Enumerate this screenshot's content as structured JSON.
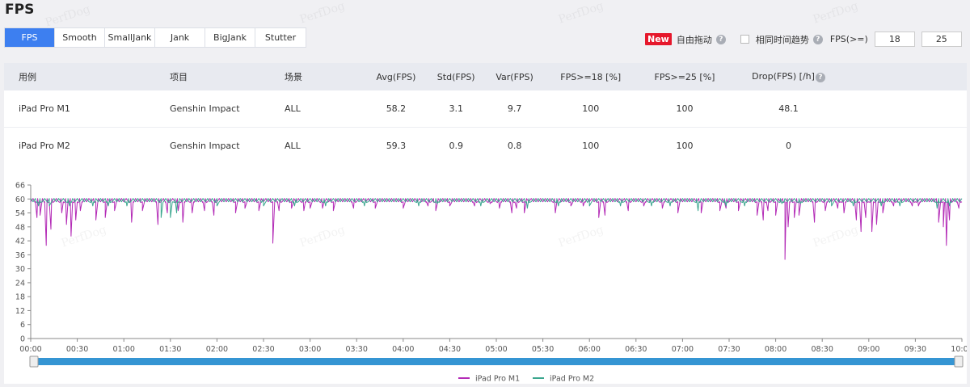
{
  "page": {
    "title": "FPS",
    "watermark": "PerfDog"
  },
  "tabs": [
    {
      "label": "FPS",
      "active": true
    },
    {
      "label": "Smooth",
      "active": false
    },
    {
      "label": "SmallJank",
      "active": false
    },
    {
      "label": "Jank",
      "active": false
    },
    {
      "label": "BigJank",
      "active": false
    },
    {
      "label": "Stutter",
      "active": false
    }
  ],
  "toolbar": {
    "new_badge": "New",
    "free_drag_label": "自由拖动",
    "same_time_trend_label": "相同时间趋势",
    "same_time_trend_checked": false,
    "fps_ge_label": "FPS(>=)",
    "fps_threshold_1": "18",
    "fps_threshold_2": "25"
  },
  "table": {
    "headers": [
      "用例",
      "项目",
      "场景",
      "Avg(FPS)",
      "Std(FPS)",
      "Var(FPS)",
      "FPS>=18 [%]",
      "FPS>=25 [%]",
      "Drop(FPS) [/h]"
    ],
    "rows": [
      [
        "iPad Pro M1",
        "Genshin Impact",
        "ALL",
        "58.2",
        "3.1",
        "9.7",
        "100",
        "100",
        "48.1"
      ],
      [
        "iPad Pro M2",
        "Genshin Impact",
        "ALL",
        "59.3",
        "0.9",
        "0.8",
        "100",
        "100",
        "0"
      ]
    ]
  },
  "colors": {
    "accent": "#3d7ff0",
    "badge": "#e6182c",
    "m1": "#b32ab6",
    "m2": "#3aa68e",
    "slider": "#3595d3"
  },
  "chart_data": {
    "type": "line",
    "title": "",
    "xlabel": "",
    "ylabel": "",
    "ylim": [
      0,
      66
    ],
    "yticks": [
      0,
      6,
      12,
      18,
      24,
      30,
      36,
      42,
      48,
      54,
      60,
      66
    ],
    "xlim": [
      0,
      600
    ],
    "xtick_labels": [
      "00:00",
      "00:30",
      "01:00",
      "01:30",
      "02:00",
      "02:30",
      "03:00",
      "03:30",
      "04:00",
      "04:30",
      "05:00",
      "05:30",
      "06:00",
      "06:30",
      "07:00",
      "07:30",
      "08:00",
      "08:30",
      "09:00",
      "09:30",
      "10:00"
    ],
    "baseline": 59.5,
    "series": [
      {
        "name": "iPad Pro M1",
        "color": "#b32ab6",
        "drops": [
          [
            4,
            52
          ],
          [
            6,
            53
          ],
          [
            10,
            40
          ],
          [
            13,
            47
          ],
          [
            20,
            54
          ],
          [
            23,
            49
          ],
          [
            26,
            44
          ],
          [
            29,
            51
          ],
          [
            32,
            55
          ],
          [
            42,
            51
          ],
          [
            48,
            52
          ],
          [
            54,
            55
          ],
          [
            65,
            50
          ],
          [
            72,
            55
          ],
          [
            82,
            49
          ],
          [
            88,
            54
          ],
          [
            95,
            55
          ],
          [
            98,
            50
          ],
          [
            104,
            54
          ],
          [
            112,
            55
          ],
          [
            118,
            53
          ],
          [
            132,
            54
          ],
          [
            138,
            56
          ],
          [
            147,
            55
          ],
          [
            156,
            41
          ],
          [
            160,
            55
          ],
          [
            168,
            56
          ],
          [
            176,
            55
          ],
          [
            180,
            56
          ],
          [
            188,
            56
          ],
          [
            195,
            55
          ],
          [
            208,
            56
          ],
          [
            222,
            56
          ],
          [
            240,
            56
          ],
          [
            256,
            57
          ],
          [
            261,
            55
          ],
          [
            270,
            57
          ],
          [
            286,
            57
          ],
          [
            296,
            58
          ],
          [
            302,
            56
          ],
          [
            310,
            54
          ],
          [
            313,
            56
          ],
          [
            318,
            54
          ],
          [
            338,
            54
          ],
          [
            348,
            57
          ],
          [
            356,
            57
          ],
          [
            366,
            52
          ],
          [
            370,
            53
          ],
          [
            385,
            55
          ],
          [
            395,
            57
          ],
          [
            407,
            56
          ],
          [
            417,
            54
          ],
          [
            432,
            54
          ],
          [
            444,
            55
          ],
          [
            448,
            56
          ],
          [
            456,
            55
          ],
          [
            468,
            53
          ],
          [
            472,
            51
          ],
          [
            475,
            55
          ],
          [
            480,
            53
          ],
          [
            486,
            34
          ],
          [
            488,
            48
          ],
          [
            492,
            52
          ],
          [
            495,
            53
          ],
          [
            505,
            50
          ],
          [
            512,
            55
          ],
          [
            520,
            56
          ],
          [
            524,
            54
          ],
          [
            532,
            51
          ],
          [
            535,
            46
          ],
          [
            538,
            52
          ],
          [
            542,
            46
          ],
          [
            545,
            49
          ],
          [
            549,
            54
          ],
          [
            556,
            57
          ],
          [
            568,
            57
          ],
          [
            572,
            57
          ],
          [
            585,
            50
          ],
          [
            588,
            48
          ],
          [
            590,
            40
          ],
          [
            592,
            51
          ],
          [
            598,
            56
          ]
        ]
      },
      {
        "name": "iPad Pro M2",
        "color": "#3aa68e",
        "drops": [
          [
            5,
            57
          ],
          [
            12,
            57
          ],
          [
            25,
            57
          ],
          [
            40,
            57
          ],
          [
            50,
            57
          ],
          [
            62,
            57
          ],
          [
            84,
            52
          ],
          [
            90,
            52
          ],
          [
            94,
            54
          ],
          [
            120,
            57
          ],
          [
            150,
            57
          ],
          [
            170,
            57
          ],
          [
            190,
            57
          ],
          [
            215,
            57
          ],
          [
            250,
            57
          ],
          [
            262,
            58
          ],
          [
            290,
            57
          ],
          [
            320,
            56
          ],
          [
            340,
            57
          ],
          [
            360,
            57
          ],
          [
            380,
            57
          ],
          [
            400,
            57
          ],
          [
            412,
            57
          ],
          [
            430,
            55
          ],
          [
            448,
            57
          ],
          [
            460,
            57
          ],
          [
            484,
            58
          ],
          [
            496,
            58
          ],
          [
            516,
            57
          ],
          [
            530,
            57
          ],
          [
            548,
            57
          ],
          [
            560,
            57
          ],
          [
            584,
            56
          ],
          [
            592,
            57
          ]
        ]
      }
    ],
    "legend": "bottom-center",
    "grid": false
  }
}
